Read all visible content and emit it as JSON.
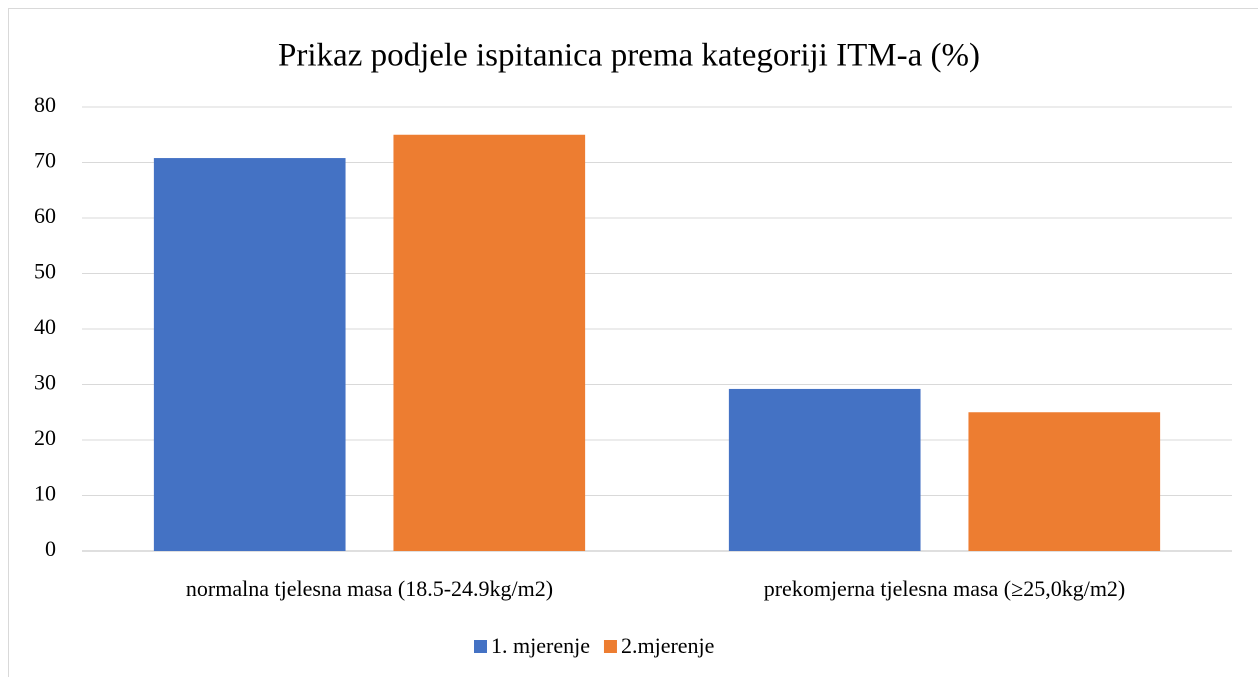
{
  "chart_data": {
    "type": "bar",
    "title": "Prikaz podjele ispitanica prema kategoriji ITM-a (%)",
    "categories": [
      "normalna tjelesna masa (18.5-24.9kg/m2)",
      "prekomjerna tjelesna masa (≥25,0kg/m2)"
    ],
    "series": [
      {
        "name": "1. mjerenje",
        "color": "#4472c4",
        "values": [
          70.8,
          29.2
        ]
      },
      {
        "name": "2.mjerenje",
        "color": "#ed7d31",
        "values": [
          75,
          25
        ]
      }
    ],
    "ylim": [
      0,
      80
    ],
    "yticks": [
      0,
      10,
      20,
      30,
      40,
      50,
      60,
      70,
      80
    ],
    "grid": true,
    "legend": "bottom"
  }
}
